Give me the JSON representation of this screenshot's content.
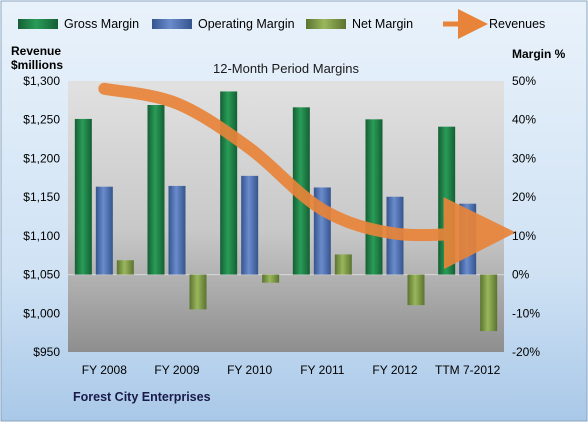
{
  "chart_data": {
    "type": "bar",
    "title": "12-Month Period Margins",
    "company": "Forest City Enterprises",
    "left_axis_title": [
      "Revenue",
      "$millions"
    ],
    "right_axis_title": "Margin %",
    "categories": [
      "FY 2008",
      "FY 2009",
      "FY 2010",
      "FY 2011",
      "FY 2012",
      "TTM 7-2012"
    ],
    "left_axis": {
      "min": 950,
      "max": 1300,
      "step": 50,
      "ticks": [
        "$950",
        "$1,000",
        "$1,050",
        "$1,100",
        "$1,150",
        "$1,200",
        "$1,250",
        "$1,300"
      ]
    },
    "right_axis": {
      "min": -20,
      "max": 50,
      "step": 10,
      "ticks": [
        "-20%",
        "-10%",
        "0%",
        "10%",
        "20%",
        "30%",
        "40%",
        "50%"
      ]
    },
    "series": [
      {
        "name": "Gross Margin",
        "axis": "right",
        "kind": "bar",
        "color": "#1e8a4a",
        "values": [
          40.2,
          43.8,
          47.3,
          43.2,
          40.1,
          38.2
        ]
      },
      {
        "name": "Operating Margin",
        "axis": "right",
        "kind": "bar",
        "color": "#4a6fb5",
        "values": [
          22.7,
          22.9,
          25.5,
          22.5,
          20.1,
          18.3
        ]
      },
      {
        "name": "Net Margin",
        "axis": "right",
        "kind": "bar",
        "color": "#7e9a42",
        "values": [
          3.7,
          -9.0,
          -2.1,
          5.2,
          -7.9,
          -14.6
        ]
      },
      {
        "name": "Revenues",
        "axis": "left",
        "kind": "line",
        "color": "#e8843a",
        "values": [
          1290,
          1271,
          1213,
          1134,
          1103,
          1104
        ]
      }
    ],
    "legend": {
      "position": "top"
    },
    "grid": false
  }
}
